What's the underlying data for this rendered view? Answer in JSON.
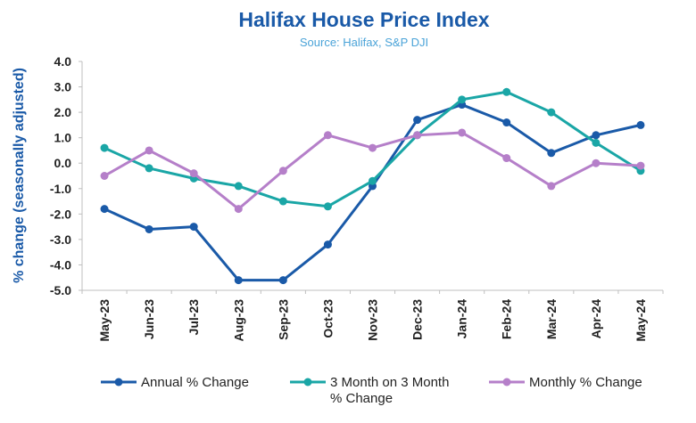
{
  "chart_data": {
    "type": "line",
    "title": "Halifax House Price Index",
    "subtitle": "Source: Halifax, S&P DJI",
    "ylabel": "% change (seasonally adjusted)",
    "ylim": [
      -5.0,
      4.0
    ],
    "yticks": [
      "4.0",
      "3.0",
      "2.0",
      "1.0",
      "0.0",
      "-1.0",
      "-2.0",
      "-3.0",
      "-4.0",
      "-5.0"
    ],
    "categories": [
      "May-23",
      "Jun-23",
      "Jul-23",
      "Aug-23",
      "Sep-23",
      "Oct-23",
      "Nov-23",
      "Dec-23",
      "Jan-24",
      "Feb-24",
      "Mar-24",
      "Apr-24",
      "May-24"
    ],
    "legend_position": "bottom",
    "grid": false,
    "series": [
      {
        "name": "Annual % Change",
        "color": "#1a5aa8",
        "values": [
          -1.8,
          -2.6,
          -2.5,
          -4.6,
          -4.6,
          -3.2,
          -0.9,
          1.7,
          2.3,
          1.6,
          0.4,
          1.1,
          1.5
        ]
      },
      {
        "name": "3 Month on 3 Month % Change",
        "name_lines": [
          "3 Month on 3 Month",
          "% Change"
        ],
        "color": "#1aa6a6",
        "values": [
          0.6,
          -0.2,
          -0.6,
          -0.9,
          -1.5,
          -1.7,
          -0.7,
          1.1,
          2.5,
          2.8,
          2.0,
          0.8,
          -0.3
        ]
      },
      {
        "name": "Monthly % Change",
        "color": "#b57fc9",
        "values": [
          -0.5,
          0.5,
          -0.4,
          -1.8,
          -0.3,
          1.1,
          0.6,
          1.1,
          1.2,
          0.2,
          -0.9,
          0.0,
          -0.1
        ]
      }
    ]
  }
}
